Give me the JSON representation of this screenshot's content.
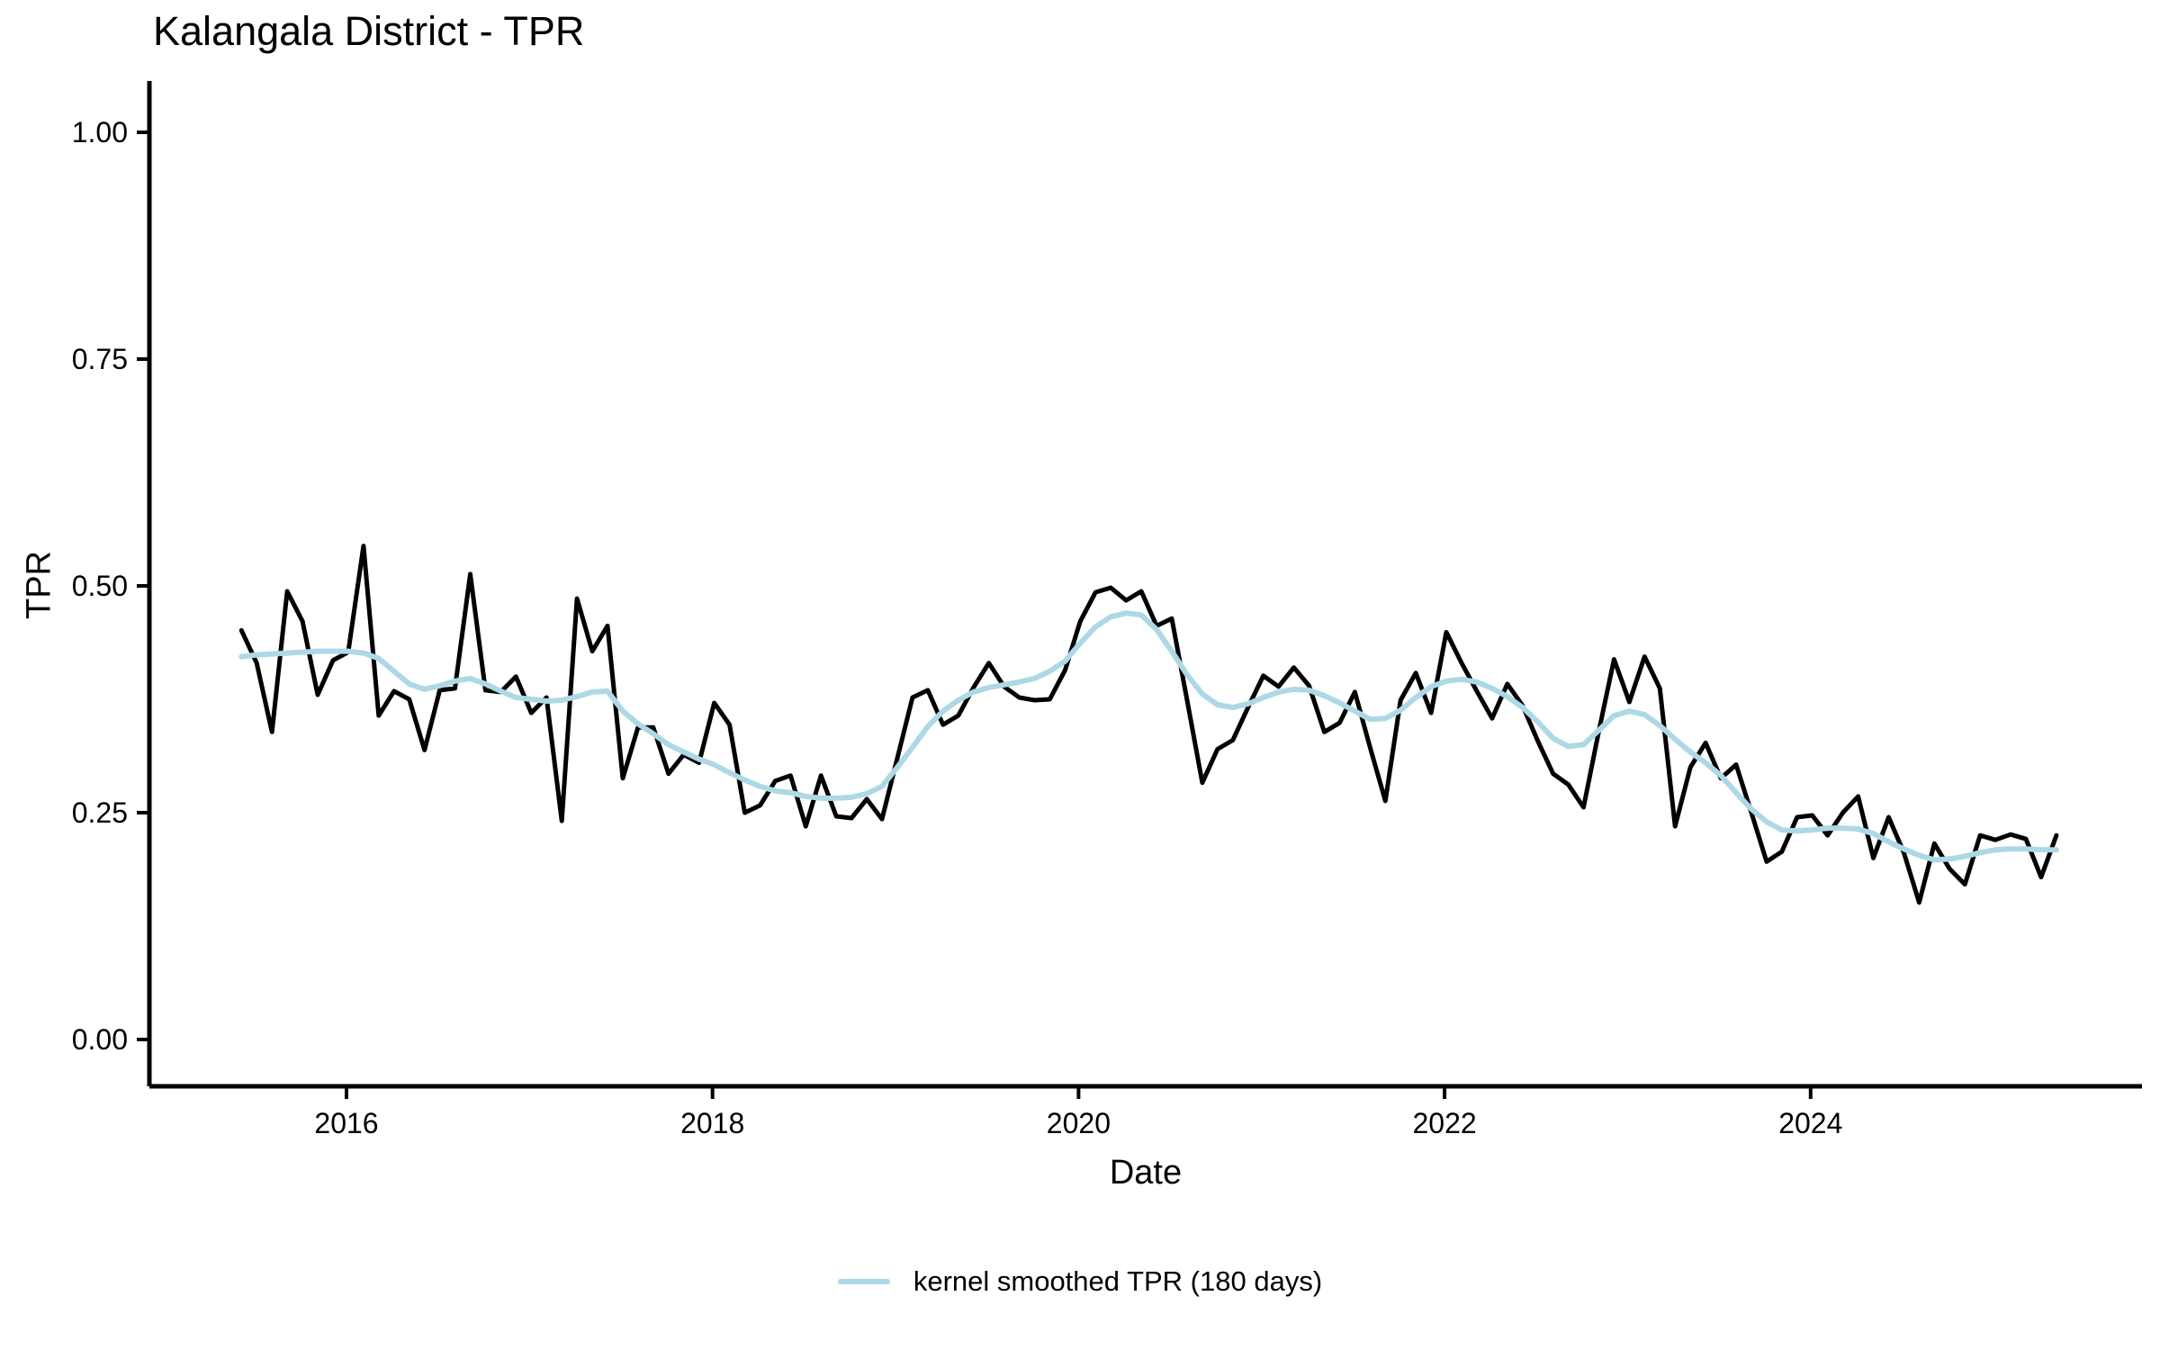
{
  "title": "Kalangala District - TPR",
  "colors": {
    "background": "#FFFFFF",
    "axis": "#000000",
    "text": "#000000",
    "raw_line": "#000000",
    "smoothed_line": "#ADD8E6"
  },
  "legend": {
    "items": [
      {
        "label": "kernel smoothed TPR (180 days)",
        "color": "#ADD8E6"
      }
    ]
  },
  "chart_data": {
    "type": "line",
    "title": "Kalangala District - TPR",
    "xlabel": "Date",
    "ylabel": "TPR",
    "ylim": [
      0,
      1
    ],
    "grid": false,
    "legend_position": "bottom",
    "y_ticks": [
      {
        "value": 0.0,
        "label": "0.00"
      },
      {
        "value": 0.25,
        "label": "0.25"
      },
      {
        "value": 0.5,
        "label": "0.50"
      },
      {
        "value": 0.75,
        "label": "0.75"
      },
      {
        "value": 1.0,
        "label": "1.00"
      }
    ],
    "x_ticks": [
      {
        "value": 2016,
        "label": "2016"
      },
      {
        "value": 2018,
        "label": "2018"
      },
      {
        "value": 2020,
        "label": "2020"
      },
      {
        "value": 2022,
        "label": "2022"
      },
      {
        "value": 2024,
        "label": "2024"
      }
    ],
    "x_start": "2015-06",
    "x_end": "2025-05",
    "frequency": "monthly",
    "n_points": 120,
    "series": [
      {
        "name": "TPR",
        "color": "#000000",
        "width": 5,
        "values": [
          0.451,
          0.415,
          0.339,
          0.494,
          0.461,
          0.38,
          0.418,
          0.427,
          0.544,
          0.357,
          0.384,
          0.375,
          0.319,
          0.385,
          0.387,
          0.513,
          0.385,
          0.383,
          0.4,
          0.36,
          0.377,
          0.241,
          0.486,
          0.428,
          0.456,
          0.288,
          0.344,
          0.344,
          0.293,
          0.314,
          0.305,
          0.371,
          0.347,
          0.25,
          0.258,
          0.285,
          0.291,
          0.235,
          0.291,
          0.246,
          0.244,
          0.265,
          0.243,
          0.31,
          0.377,
          0.385,
          0.347,
          0.357,
          0.388,
          0.415,
          0.389,
          0.377,
          0.374,
          0.375,
          0.407,
          0.461,
          0.493,
          0.498,
          0.484,
          0.494,
          0.456,
          0.464,
          0.374,
          0.283,
          0.32,
          0.33,
          0.366,
          0.401,
          0.389,
          0.41,
          0.39,
          0.339,
          0.349,
          0.383,
          0.322,
          0.263,
          0.374,
          0.404,
          0.36,
          0.449,
          0.415,
          0.384,
          0.354,
          0.392,
          0.368,
          0.329,
          0.293,
          0.281,
          0.256,
          0.34,
          0.419,
          0.372,
          0.422,
          0.387,
          0.235,
          0.3,
          0.327,
          0.288,
          0.303,
          0.25,
          0.196,
          0.207,
          0.245,
          0.247,
          0.225,
          0.25,
          0.268,
          0.2,
          0.245,
          0.206,
          0.151,
          0.216,
          0.188,
          0.171,
          0.225,
          0.22,
          0.226,
          0.221,
          0.179,
          0.225
        ]
      },
      {
        "name": "kernel smoothed TPR (180 days)",
        "color": "#ADD8E6",
        "width": 6,
        "values": [
          0.422,
          0.424,
          0.425,
          0.426,
          0.427,
          0.428,
          0.428,
          0.428,
          0.426,
          0.42,
          0.406,
          0.392,
          0.386,
          0.39,
          0.395,
          0.398,
          0.392,
          0.384,
          0.377,
          0.375,
          0.373,
          0.374,
          0.378,
          0.383,
          0.384,
          0.362,
          0.348,
          0.337,
          0.325,
          0.317,
          0.309,
          0.303,
          0.294,
          0.286,
          0.279,
          0.274,
          0.272,
          0.268,
          0.266,
          0.266,
          0.267,
          0.271,
          0.279,
          0.3,
          0.322,
          0.345,
          0.362,
          0.374,
          0.383,
          0.388,
          0.391,
          0.394,
          0.398,
          0.406,
          0.417,
          0.437,
          0.455,
          0.466,
          0.47,
          0.468,
          0.452,
          0.428,
          0.402,
          0.381,
          0.369,
          0.366,
          0.37,
          0.377,
          0.383,
          0.386,
          0.385,
          0.379,
          0.371,
          0.362,
          0.353,
          0.354,
          0.363,
          0.377,
          0.389,
          0.395,
          0.397,
          0.394,
          0.387,
          0.378,
          0.366,
          0.35,
          0.332,
          0.323,
          0.325,
          0.341,
          0.357,
          0.362,
          0.358,
          0.346,
          0.331,
          0.317,
          0.305,
          0.291,
          0.272,
          0.254,
          0.24,
          0.231,
          0.23,
          0.231,
          0.233,
          0.233,
          0.232,
          0.227,
          0.218,
          0.21,
          0.203,
          0.198,
          0.199,
          0.202,
          0.206,
          0.209,
          0.21,
          0.21,
          0.209,
          0.209
        ]
      }
    ]
  }
}
